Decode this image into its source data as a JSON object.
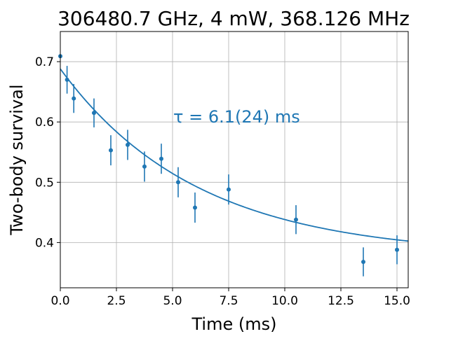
{
  "chart_data": {
    "type": "scatter",
    "title": "306480.7 GHz, 4 mW, 368.126 MHz",
    "xlabel": "Time (ms)",
    "ylabel": "Two-body survival",
    "xlim": [
      0,
      15.5
    ],
    "ylim": [
      0.325,
      0.75
    ],
    "xticks": [
      0.0,
      2.5,
      5.0,
      7.5,
      10.0,
      12.5,
      15.0
    ],
    "xtick_labels": [
      "0.0",
      "2.5",
      "5.0",
      "7.5",
      "10.0",
      "12.5",
      "15.0"
    ],
    "yticks": [
      0.4,
      0.5,
      0.6,
      0.7
    ],
    "ytick_labels": [
      "0.4",
      "0.5",
      "0.6",
      "0.7"
    ],
    "grid": true,
    "color": "#1f77b4",
    "annotation": "τ = 6.1(24) ms",
    "points": [
      {
        "x": 0.0,
        "y": 0.709,
        "err": 0.0
      },
      {
        "x": 0.3,
        "y": 0.67,
        "err": 0.023
      },
      {
        "x": 0.6,
        "y": 0.639,
        "err": 0.024
      },
      {
        "x": 1.5,
        "y": 0.615,
        "err": 0.024
      },
      {
        "x": 2.25,
        "y": 0.553,
        "err": 0.025
      },
      {
        "x": 3.0,
        "y": 0.562,
        "err": 0.025
      },
      {
        "x": 3.75,
        "y": 0.526,
        "err": 0.025
      },
      {
        "x": 4.5,
        "y": 0.539,
        "err": 0.025
      },
      {
        "x": 5.25,
        "y": 0.5,
        "err": 0.025
      },
      {
        "x": 6.0,
        "y": 0.458,
        "err": 0.025
      },
      {
        "x": 7.5,
        "y": 0.488,
        "err": 0.025
      },
      {
        "x": 10.5,
        "y": 0.438,
        "err": 0.024
      },
      {
        "x": 13.5,
        "y": 0.368,
        "err": 0.024
      },
      {
        "x": 15.0,
        "y": 0.388,
        "err": 0.024
      }
    ],
    "fit": {
      "a": 0.31,
      "tau": 6.1,
      "c": 0.378
    }
  }
}
